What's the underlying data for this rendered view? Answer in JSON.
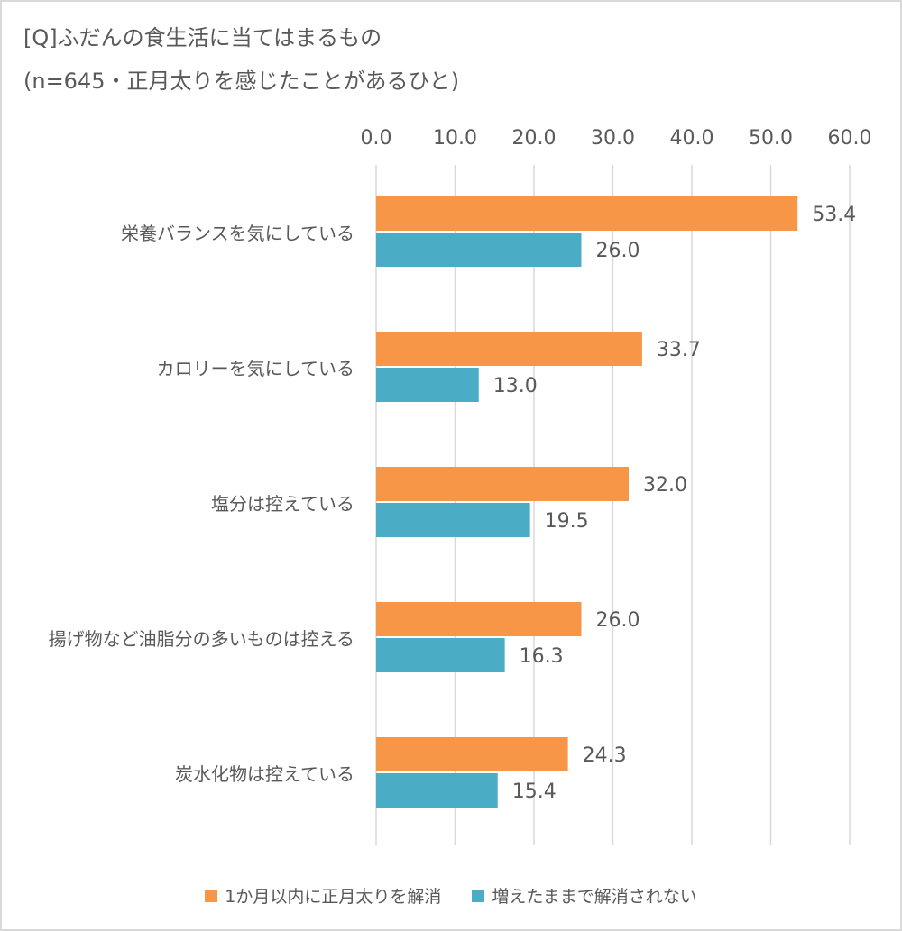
{
  "title_line1": "[Q]ふだんの食生活に当てはまるもの",
  "title_line2": "(n=645・正月太りを感じたことがあるひと)",
  "chart_data": {
    "type": "bar",
    "orientation": "horizontal",
    "categories": [
      "栄養バランスを気にしている",
      "カロリーを気にしている",
      "塩分は控えている",
      "揚げ物など油脂分の多いものは控える",
      "炭水化物は控えている"
    ],
    "series": [
      {
        "name": "1か月以内に正月太りを解消",
        "color": "#f79646",
        "values": [
          53.4,
          33.7,
          32.0,
          26.0,
          24.3
        ]
      },
      {
        "name": "増えたままで解消されない",
        "color": "#4bacc6",
        "values": [
          26.0,
          13.0,
          19.5,
          16.3,
          15.4
        ]
      }
    ],
    "xlim": [
      0,
      60
    ],
    "ticks": [
      "0.0",
      "10.0",
      "20.0",
      "30.0",
      "40.0",
      "50.0",
      "60.0"
    ],
    "tick_values": [
      0,
      10,
      20,
      30,
      40,
      50,
      60
    ],
    "value_labels": [
      [
        "53.4",
        "33.7",
        "32.0",
        "26.0",
        "24.3"
      ],
      [
        "26.0",
        "13.0",
        "19.5",
        "16.3",
        "15.4"
      ]
    ],
    "grid": true,
    "legend_position": "bottom"
  }
}
